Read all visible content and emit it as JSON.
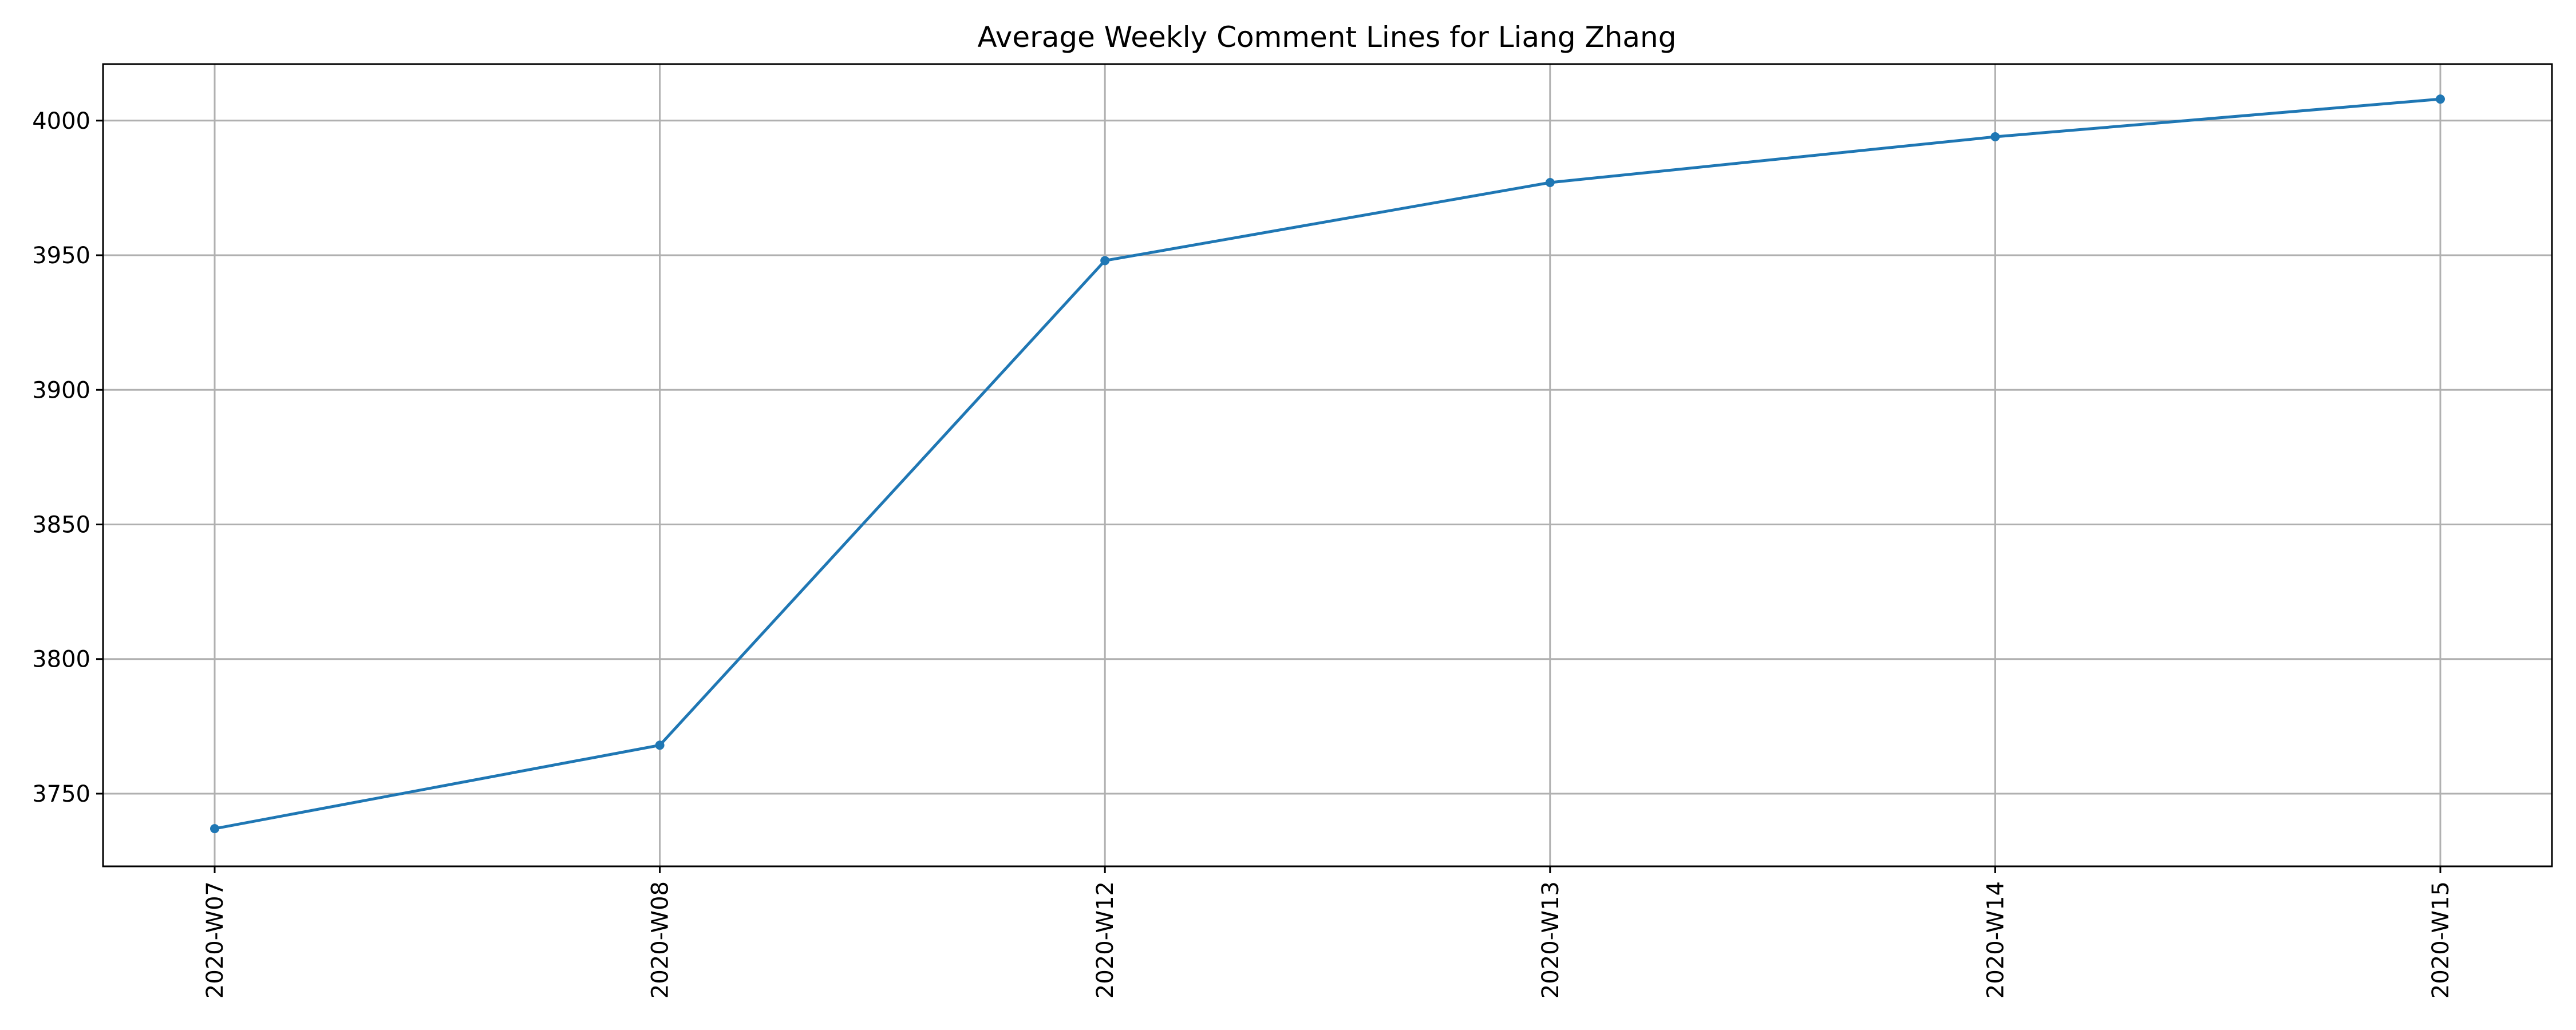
{
  "chart_data": {
    "type": "line",
    "title": "Average Weekly Comment Lines for Liang Zhang",
    "xlabel": "",
    "ylabel": "",
    "categories": [
      "2020-W07",
      "2020-W08",
      "2020-W12",
      "2020-W13",
      "2020-W14",
      "2020-W15"
    ],
    "series": [
      {
        "values": [
          3737,
          3768,
          3948,
          3977,
          3994,
          4008
        ],
        "color": "#1f77b4",
        "marker": "circle"
      }
    ],
    "ylim": [
      3723,
      4021
    ],
    "yticks": [
      3750,
      3800,
      3850,
      3900,
      3950,
      4000
    ],
    "x_tick_rotation": "vertical",
    "grid": true,
    "legend": "none"
  }
}
